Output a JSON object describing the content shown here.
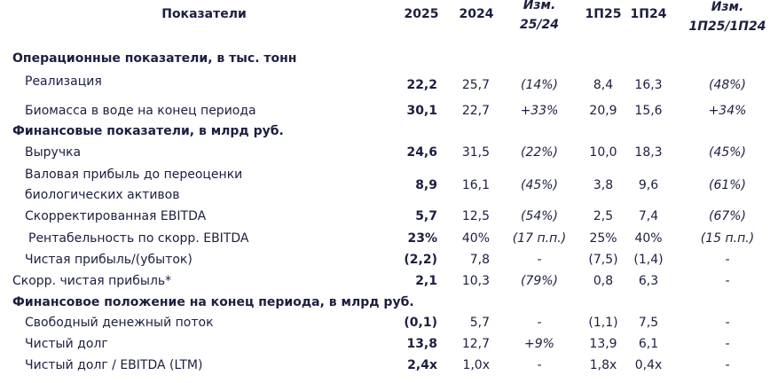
{
  "header": {
    "title": "Показатели",
    "columns": [
      [
        "2025"
      ],
      [
        "2024"
      ],
      [
        "Изм.",
        "25/24"
      ],
      [
        "1П25"
      ],
      [
        "1П24"
      ],
      [
        "Изм.",
        "1П25/1П24"
      ]
    ]
  },
  "rows": [
    {
      "section": "Операционные показатели, в тыс. тонн"
    },
    {
      "label": [
        "Реализация"
      ],
      "cells": [
        "22,2",
        "25,7",
        "(14%)",
        "8,4",
        "16,3",
        "(48%)"
      ]
    },
    {
      "label": [
        "Биомасса в воде на конец периода"
      ],
      "cells": [
        "30,1",
        "22,7",
        "+33%",
        "20,9",
        "15,6",
        "+34%"
      ]
    },
    {
      "section": "Финансовые показатели, в млрд руб."
    },
    {
      "label": [
        "Выручка"
      ],
      "cells": [
        "24,6",
        "31,5",
        "(22%)",
        "10,0",
        "18,3",
        "(45%)"
      ]
    },
    {
      "label": [
        "Валовая прибыль до переоценки",
        "биологических активов"
      ],
      "cells": [
        "8,9",
        "16,1",
        "(45%)",
        "3,8",
        "9,6",
        "(61%)"
      ]
    },
    {
      "label": [
        "Скорректированная EBITDA"
      ],
      "cells": [
        "5,7",
        "12,5",
        "(54%)",
        "2,5",
        "7,4",
        "(67%)"
      ]
    },
    {
      "label": [
        "Рентабельность по скорр. EBITDA"
      ],
      "cells": [
        "23%",
        "40%",
        "(17 п.п.)",
        "25%",
        "40%",
        "(15 п.п.)"
      ]
    },
    {
      "label": [
        "Чистая прибыль/(убыток)"
      ],
      "cells": [
        "(2,2)",
        "7,8",
        "-",
        "(7,5)",
        "(1,4)",
        "-"
      ]
    },
    {
      "label": [
        "Скорр. чистая прибыль*"
      ],
      "cells": [
        "2,1",
        "10,3",
        "(79%)",
        "0,8",
        "6,3",
        "-"
      ]
    },
    {
      "section": "Финансовое положение на конец периода, в млрд руб."
    },
    {
      "label": [
        "Свободный денежный поток"
      ],
      "cells": [
        "(0,1)",
        "5,7",
        "-",
        "(1,1)",
        "7,5",
        "-"
      ]
    },
    {
      "label": [
        "Чистый долг"
      ],
      "cells": [
        "13,8",
        "12,7",
        "+9%",
        "13,9",
        "6,1",
        "-"
      ]
    },
    {
      "label": [
        "Чистый долг / EBITDA (LTM)"
      ],
      "cells": [
        "2,4x",
        "1,0x",
        "-",
        "1,8x",
        "0,4x",
        "-"
      ]
    }
  ]
}
